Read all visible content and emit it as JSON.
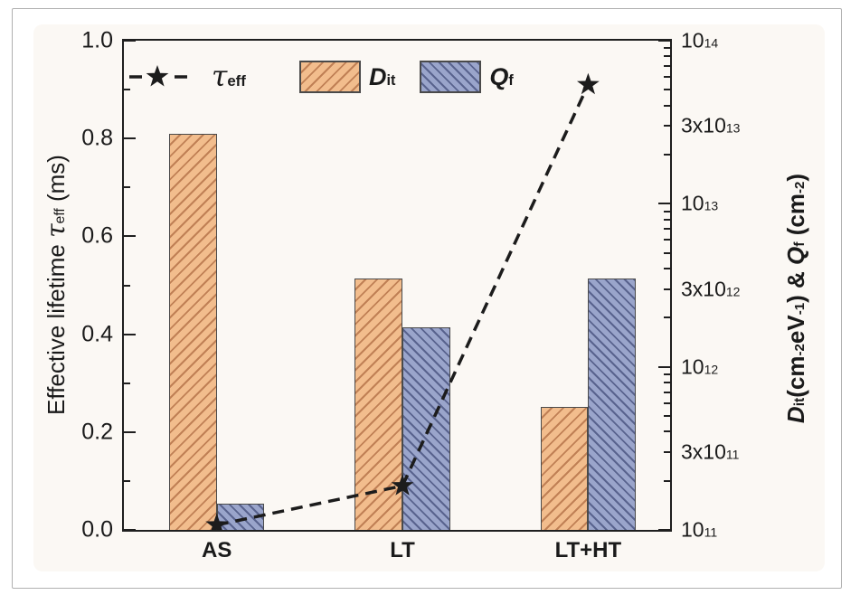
{
  "figure": {
    "page_background": "#ffffff",
    "figure_background": "#fbf8f4",
    "border_color": "#b0b0b0"
  },
  "colors": {
    "dit_fill": "#f2bd8d",
    "dit_hatch": "#c08055",
    "qf_fill": "#9aa5cb",
    "qf_hatch": "#59638e",
    "bar_border": "#4a4a4a",
    "line": "#1c1c1c",
    "frame": "#1f1f1f",
    "text": "#1a1a1a"
  },
  "legend": {
    "tau_label": [
      {
        "t": "τ",
        "s": "tau"
      },
      {
        "t": "eff",
        "s": "sub"
      }
    ],
    "dit_label": [
      {
        "t": "D",
        "s": "bi"
      },
      {
        "t": "it",
        "s": "sub"
      }
    ],
    "qf_label": [
      {
        "t": "Q",
        "s": "bi"
      },
      {
        "t": "f",
        "s": "sub"
      }
    ]
  },
  "left_axis_title": [
    {
      "t": "Effective lifetime "
    },
    {
      "t": "τ",
      "s": "tau"
    },
    {
      "t": "eff",
      "s": "sub"
    },
    {
      "t": " (ms)"
    }
  ],
  "right_axis_title": [
    {
      "t": "D",
      "s": "bi"
    },
    {
      "t": "it",
      "s": "sub"
    },
    {
      "t": "(cm"
    },
    {
      "t": "-2",
      "s": "sup"
    },
    {
      "t": "eV"
    },
    {
      "t": "-1",
      "s": "sup"
    },
    {
      "t": ") & "
    },
    {
      "t": "Q",
      "s": "bi"
    },
    {
      "t": "f",
      "s": "sub"
    },
    {
      "t": " (cm"
    },
    {
      "t": "-2",
      "s": "sup"
    },
    {
      "t": ")"
    }
  ],
  "chart_data": {
    "type": "bar",
    "title": "",
    "categories": [
      "AS",
      "LT",
      "LT+HT"
    ],
    "series": [
      {
        "name": "D_it",
        "type": "bar",
        "axis": "right",
        "hatch": "/",
        "values": [
          27000000000000.0,
          3500000000000.0,
          570000000000.0
        ]
      },
      {
        "name": "Q_f",
        "type": "bar",
        "axis": "right",
        "hatch": "\\",
        "values": [
          145000000000.0,
          1750000000000.0,
          3500000000000.0
        ]
      },
      {
        "name": "tau_eff",
        "type": "line",
        "marker": "star",
        "axis": "left",
        "values": [
          0.01,
          0.09,
          0.91
        ]
      }
    ],
    "left_axis": {
      "label": "Effective lifetime tau_eff (ms)",
      "min": 0,
      "max": 1,
      "majors": [
        {
          "v": 0.0,
          "label": "0.0"
        },
        {
          "v": 0.2,
          "label": "0.2"
        },
        {
          "v": 0.4,
          "label": "0.4"
        },
        {
          "v": 0.6,
          "label": "0.6"
        },
        {
          "v": 0.8,
          "label": "0.8"
        },
        {
          "v": 1.0,
          "label": "1.0"
        }
      ],
      "minors": [
        0.1,
        0.3,
        0.5,
        0.7,
        0.9
      ]
    },
    "right_axis": {
      "label": "D_it(cm^-2 eV^-1) & Q_f (cm^-2)",
      "scale": "log",
      "min": 100000000000.0,
      "max": 100000000000000.0,
      "majors": [
        100000000000.0,
        1000000000000.0,
        10000000000000.0,
        100000000000000.0
      ],
      "minor_multiples": [
        2,
        3,
        4,
        5,
        6,
        7,
        8,
        9
      ],
      "labels": [
        {
          "v": 100000000000.0,
          "pre": "10",
          "exp": "11"
        },
        {
          "v": 300000000000.0,
          "pre": "3x10",
          "exp": "11"
        },
        {
          "v": 1000000000000.0,
          "pre": "10",
          "exp": "12"
        },
        {
          "v": 3000000000000.0,
          "pre": "3x10",
          "exp": "12"
        },
        {
          "v": 10000000000000.0,
          "pre": "10",
          "exp": "13"
        },
        {
          "v": 30000000000000.0,
          "pre": "3x10",
          "exp": "13"
        },
        {
          "v": 100000000000000.0,
          "pre": "10",
          "exp": "14"
        }
      ]
    },
    "layout": {
      "category_centers": [
        0.17,
        0.51,
        0.85
      ],
      "bar_width_frac": 0.087,
      "grid": false,
      "legend_position": "top-left"
    }
  }
}
